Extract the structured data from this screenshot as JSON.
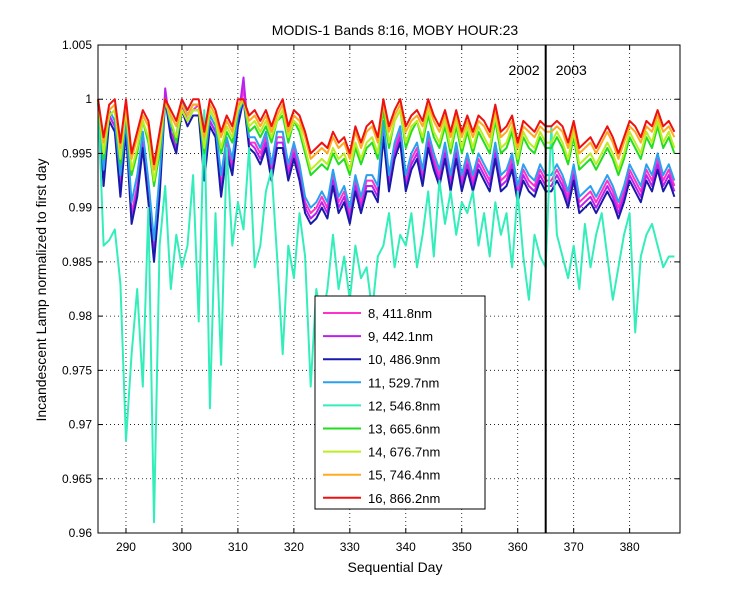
{
  "chart_data": {
    "type": "line",
    "title": "MODIS-1 Bands 8:16, MOBY HOUR:23",
    "xlabel": "Sequential Day",
    "ylabel": "Incandescent Lamp normalized to first day",
    "xlim": [
      285,
      389
    ],
    "ylim": [
      0.96,
      1.005
    ],
    "xticks": [
      290,
      300,
      310,
      320,
      330,
      340,
      350,
      360,
      370,
      380
    ],
    "yticks": [
      0.96,
      0.965,
      0.97,
      0.975,
      0.98,
      0.985,
      0.99,
      0.995,
      1,
      1.005
    ],
    "ytick_labels": [
      "0.96",
      "0.965",
      "0.97",
      "0.975",
      "0.98",
      "0.985",
      "0.99",
      "0.995",
      "1",
      "1.005"
    ],
    "grid": "dotted",
    "legend_position": "center",
    "annotations": [
      {
        "text": "2002",
        "x": 362
      },
      {
        "text": "2003",
        "x": 368
      }
    ],
    "vertical_line_x": 365,
    "x": [
      285,
      286,
      287,
      288,
      289,
      290,
      291,
      292,
      293,
      294,
      295,
      296,
      297,
      298,
      299,
      300,
      301,
      302,
      303,
      304,
      305,
      306,
      307,
      308,
      309,
      310,
      311,
      312,
      313,
      314,
      315,
      316,
      317,
      318,
      319,
      320,
      321,
      322,
      323,
      324,
      325,
      326,
      327,
      328,
      329,
      330,
      331,
      332,
      333,
      334,
      335,
      336,
      337,
      338,
      339,
      340,
      341,
      342,
      343,
      344,
      345,
      346,
      347,
      348,
      349,
      350,
      351,
      352,
      353,
      354,
      355,
      356,
      357,
      358,
      359,
      360,
      361,
      362,
      363,
      364,
      365,
      366,
      367,
      368,
      369,
      370,
      371,
      372,
      373,
      374,
      375,
      376,
      377,
      378,
      379,
      380,
      381,
      382,
      383,
      384,
      385,
      386,
      387,
      388
    ],
    "series": [
      {
        "name": "8, 411.8nm",
        "color": "#ff33cc",
        "values": [
          1.0,
          0.993,
          0.9985,
          0.9975,
          0.9925,
          0.9975,
          0.9895,
          0.992,
          0.9965,
          0.9915,
          0.986,
          0.992,
          1.0005,
          0.997,
          0.996,
          0.9995,
          0.998,
          0.999,
          0.9995,
          0.993,
          0.998,
          0.997,
          0.992,
          0.996,
          0.994,
          0.998,
          1.001,
          0.996,
          0.996,
          0.995,
          0.9965,
          0.9935,
          0.9965,
          0.9965,
          0.9935,
          0.9955,
          0.9935,
          0.9905,
          0.9895,
          0.99,
          0.991,
          0.99,
          0.993,
          0.9905,
          0.9915,
          0.9895,
          0.9925,
          0.9905,
          0.9925,
          0.9925,
          0.9915,
          0.9975,
          0.9925,
          0.9955,
          0.997,
          0.9925,
          0.9945,
          0.9955,
          0.993,
          0.9965,
          0.9945,
          0.993,
          0.9955,
          0.9925,
          0.9955,
          0.9925,
          0.9945,
          0.9925,
          0.9945,
          0.9935,
          0.9925,
          0.9955,
          0.9925,
          0.993,
          0.9945,
          0.9915,
          0.9935,
          0.9925,
          0.992,
          0.9935,
          0.9925,
          0.9925,
          0.9935,
          0.9925,
          0.991,
          0.9935,
          0.9905,
          0.991,
          0.9915,
          0.9905,
          0.9915,
          0.9925,
          0.9915,
          0.99,
          0.9915,
          0.9935,
          0.9925,
          0.9915,
          0.9935,
          0.9925,
          0.9945,
          0.9925,
          0.9935,
          0.992
        ]
      },
      {
        "name": "9, 442.1nm",
        "color": "#bb22ee",
        "values": [
          1.0,
          0.9925,
          0.9985,
          0.9975,
          0.9915,
          0.9975,
          0.989,
          0.9915,
          0.996,
          0.991,
          0.9855,
          0.9915,
          1.001,
          0.997,
          0.9955,
          0.9995,
          0.998,
          0.999,
          0.999,
          0.993,
          0.998,
          0.997,
          0.9915,
          0.9955,
          0.9935,
          0.998,
          1.002,
          0.996,
          0.9955,
          0.9945,
          0.996,
          0.993,
          0.996,
          0.996,
          0.993,
          0.995,
          0.993,
          0.99,
          0.989,
          0.9895,
          0.9905,
          0.9895,
          0.9925,
          0.99,
          0.991,
          0.989,
          0.992,
          0.99,
          0.992,
          0.992,
          0.991,
          0.997,
          0.992,
          0.995,
          0.9965,
          0.992,
          0.994,
          0.995,
          0.9925,
          0.996,
          0.994,
          0.9925,
          0.995,
          0.992,
          0.995,
          0.992,
          0.994,
          0.992,
          0.994,
          0.993,
          0.992,
          0.995,
          0.992,
          0.9925,
          0.994,
          0.991,
          0.993,
          0.992,
          0.9915,
          0.993,
          0.992,
          0.992,
          0.993,
          0.992,
          0.9905,
          0.993,
          0.99,
          0.9905,
          0.991,
          0.99,
          0.991,
          0.992,
          0.991,
          0.9895,
          0.991,
          0.993,
          0.992,
          0.991,
          0.993,
          0.992,
          0.994,
          0.992,
          0.993,
          0.9915
        ]
      },
      {
        "name": "10, 486.9nm",
        "color": "#1a1aaa",
        "values": [
          1.0,
          0.992,
          0.998,
          0.997,
          0.991,
          0.997,
          0.9885,
          0.991,
          0.9955,
          0.9905,
          0.985,
          0.991,
          1.0,
          0.9965,
          0.995,
          0.999,
          0.9975,
          0.9985,
          0.9985,
          0.9925,
          0.9975,
          0.9965,
          0.991,
          0.995,
          0.993,
          0.9975,
          1.0,
          0.9955,
          0.995,
          0.994,
          0.9955,
          0.9925,
          0.9955,
          0.9955,
          0.9925,
          0.9945,
          0.9925,
          0.9895,
          0.9885,
          0.989,
          0.99,
          0.989,
          0.992,
          0.9895,
          0.9905,
          0.9885,
          0.9915,
          0.9895,
          0.9915,
          0.9915,
          0.9905,
          0.9965,
          0.9915,
          0.9945,
          0.996,
          0.9915,
          0.9935,
          0.9945,
          0.992,
          0.9955,
          0.9935,
          0.992,
          0.9945,
          0.9915,
          0.9945,
          0.9915,
          0.9935,
          0.9915,
          0.9935,
          0.9925,
          0.9915,
          0.9945,
          0.9915,
          0.992,
          0.9935,
          0.9905,
          0.9925,
          0.9915,
          0.991,
          0.9925,
          0.9915,
          0.9915,
          0.9925,
          0.9915,
          0.99,
          0.9925,
          0.9895,
          0.99,
          0.9905,
          0.9895,
          0.9905,
          0.9915,
          0.9905,
          0.989,
          0.9905,
          0.9925,
          0.9915,
          0.9905,
          0.9925,
          0.9915,
          0.9935,
          0.9915,
          0.9925,
          0.991
        ]
      },
      {
        "name": "11, 529.7nm",
        "color": "#2aa0ee",
        "values": [
          1.0,
          0.9935,
          0.999,
          0.998,
          0.993,
          0.998,
          0.9905,
          0.993,
          0.997,
          0.9925,
          0.987,
          0.993,
          1.0,
          0.9975,
          0.9965,
          1.0,
          0.9985,
          0.9995,
          0.9995,
          0.994,
          0.9985,
          0.9975,
          0.993,
          0.9965,
          0.9945,
          0.9985,
          1.0,
          0.9965,
          0.9965,
          0.9955,
          0.997,
          0.994,
          0.997,
          0.997,
          0.994,
          0.996,
          0.994,
          0.991,
          0.99,
          0.9905,
          0.9915,
          0.9905,
          0.9935,
          0.991,
          0.992,
          0.99,
          0.993,
          0.991,
          0.993,
          0.993,
          0.992,
          0.998,
          0.993,
          0.996,
          0.9975,
          0.993,
          0.995,
          0.996,
          0.9935,
          0.997,
          0.995,
          0.9935,
          0.996,
          0.993,
          0.996,
          0.993,
          0.995,
          0.993,
          0.995,
          0.994,
          0.993,
          0.996,
          0.993,
          0.9935,
          0.995,
          0.992,
          0.994,
          0.993,
          0.9925,
          0.994,
          0.993,
          0.993,
          0.994,
          0.993,
          0.9915,
          0.994,
          0.991,
          0.9915,
          0.992,
          0.991,
          0.992,
          0.993,
          0.992,
          0.9905,
          0.992,
          0.994,
          0.993,
          0.992,
          0.994,
          0.993,
          0.995,
          0.993,
          0.994,
          0.9925
        ]
      },
      {
        "name": "12, 546.8nm",
        "color": "#33eebb",
        "values": [
          1.0,
          0.9865,
          0.987,
          0.988,
          0.983,
          0.9685,
          0.9765,
          0.9825,
          0.9735,
          0.99,
          0.961,
          0.9865,
          0.992,
          0.9825,
          0.9875,
          0.9845,
          0.9865,
          0.993,
          0.9795,
          0.999,
          0.9715,
          0.9895,
          0.9755,
          0.9955,
          0.9865,
          0.9905,
          0.988,
          0.9955,
          0.9845,
          0.9865,
          0.9915,
          0.9935,
          0.9855,
          0.9765,
          0.9865,
          0.9835,
          0.9895,
          0.9855,
          0.9735,
          0.9825,
          0.9795,
          0.9825,
          0.9875,
          0.9825,
          0.9855,
          0.9815,
          0.9865,
          0.9835,
          0.9845,
          0.9805,
          0.9855,
          0.9865,
          0.9895,
          0.9845,
          0.9875,
          0.9865,
          0.9895,
          0.9845,
          0.9875,
          0.9915,
          0.9855,
          0.9925,
          0.9885,
          0.9915,
          0.9875,
          0.9905,
          0.9895,
          0.9915,
          0.9865,
          0.9895,
          0.9855,
          0.9905,
          0.9875,
          0.9895,
          0.9845,
          0.9915,
          0.9855,
          0.9815,
          0.9875,
          0.9855,
          0.9845,
          0.9975,
          0.9875,
          0.9855,
          0.9835,
          0.9865,
          0.9825,
          0.9885,
          0.9845,
          0.9875,
          0.9895,
          0.9855,
          0.9815,
          0.9845,
          0.9875,
          0.9895,
          0.9785,
          0.9855,
          0.9875,
          0.9885,
          0.9865,
          0.9845,
          0.9855,
          0.9855
        ]
      },
      {
        "name": "13, 665.6nm",
        "color": "#22dd22",
        "values": [
          1.0,
          0.9945,
          0.9985,
          0.999,
          0.994,
          0.999,
          0.993,
          0.995,
          0.998,
          0.996,
          0.992,
          0.995,
          1.0,
          0.998,
          0.996,
          0.999,
          0.998,
          0.999,
          0.999,
          0.995,
          0.999,
          0.998,
          0.995,
          0.997,
          0.996,
          0.999,
          1.0,
          0.997,
          0.9975,
          0.9965,
          0.9975,
          0.996,
          0.998,
          0.9985,
          0.996,
          0.998,
          0.997,
          0.995,
          0.993,
          0.9935,
          0.994,
          0.9935,
          0.995,
          0.994,
          0.9945,
          0.993,
          0.9955,
          0.994,
          0.9955,
          0.996,
          0.9945,
          0.999,
          0.9955,
          0.998,
          0.999,
          0.9955,
          0.997,
          0.998,
          0.996,
          0.9985,
          0.9965,
          0.9955,
          0.9975,
          0.995,
          0.9975,
          0.995,
          0.997,
          0.995,
          0.997,
          0.996,
          0.995,
          0.998,
          0.995,
          0.9955,
          0.997,
          0.994,
          0.9965,
          0.9955,
          0.995,
          0.9965,
          0.9955,
          0.9955,
          0.9965,
          0.9955,
          0.994,
          0.9965,
          0.9935,
          0.994,
          0.9945,
          0.9935,
          0.9945,
          0.9955,
          0.9945,
          0.993,
          0.9945,
          0.9965,
          0.9955,
          0.9945,
          0.9965,
          0.9955,
          0.9975,
          0.9955,
          0.9965,
          0.995
        ]
      },
      {
        "name": "14, 676.7nm",
        "color": "#bbee22",
        "values": [
          1.0,
          0.995,
          0.9985,
          0.999,
          0.9945,
          0.999,
          0.9935,
          0.9955,
          0.998,
          0.9965,
          0.9925,
          0.9955,
          1.0,
          0.998,
          0.9965,
          0.999,
          0.998,
          0.999,
          0.999,
          0.9955,
          0.999,
          0.998,
          0.9955,
          0.9975,
          0.9965,
          0.999,
          1.0,
          0.9975,
          0.998,
          0.997,
          0.998,
          0.9965,
          0.998,
          0.999,
          0.9965,
          0.998,
          0.9975,
          0.9955,
          0.9935,
          0.994,
          0.9945,
          0.994,
          0.9955,
          0.9945,
          0.995,
          0.9935,
          0.996,
          0.9945,
          0.996,
          0.9965,
          0.995,
          1.0,
          0.996,
          0.998,
          0.999,
          0.996,
          0.9975,
          0.998,
          0.9965,
          0.999,
          0.997,
          0.996,
          0.998,
          0.9955,
          0.998,
          0.9955,
          0.9975,
          0.9955,
          0.9975,
          0.9965,
          0.9955,
          0.9985,
          0.9955,
          0.996,
          0.9975,
          0.9945,
          0.997,
          0.996,
          0.9955,
          0.997,
          0.996,
          0.996,
          0.997,
          0.996,
          0.9945,
          0.997,
          0.994,
          0.9945,
          0.995,
          0.994,
          0.995,
          0.996,
          0.995,
          0.9935,
          0.995,
          0.997,
          0.996,
          0.995,
          0.997,
          0.996,
          0.998,
          0.996,
          0.997,
          0.9955
        ]
      },
      {
        "name": "15, 746.4nm",
        "color": "#ffaa22",
        "values": [
          1.0,
          0.996,
          0.999,
          0.9995,
          0.9955,
          0.9995,
          0.9945,
          0.9965,
          0.9985,
          0.9975,
          0.9935,
          0.9965,
          1.0,
          0.9985,
          0.9975,
          0.9995,
          0.9985,
          0.9995,
          0.9995,
          0.9965,
          0.9995,
          0.9985,
          0.9965,
          0.998,
          0.997,
          0.9995,
          1.0,
          0.998,
          0.9985,
          0.9975,
          0.9985,
          0.997,
          0.9985,
          0.9995,
          0.997,
          0.9985,
          0.998,
          0.9965,
          0.9945,
          0.995,
          0.9955,
          0.995,
          0.9965,
          0.9955,
          0.996,
          0.9945,
          0.997,
          0.9955,
          0.997,
          0.9975,
          0.996,
          0.9995,
          0.997,
          0.9985,
          0.9995,
          0.997,
          0.998,
          0.9985,
          0.9975,
          0.9995,
          0.998,
          0.997,
          0.9985,
          0.9965,
          0.9985,
          0.9965,
          0.998,
          0.9965,
          0.998,
          0.9975,
          0.9965,
          0.999,
          0.9965,
          0.997,
          0.998,
          0.9955,
          0.9975,
          0.997,
          0.9965,
          0.9975,
          0.997,
          0.997,
          0.9975,
          0.997,
          0.9955,
          0.9975,
          0.995,
          0.9955,
          0.996,
          0.995,
          0.996,
          0.997,
          0.996,
          0.9945,
          0.996,
          0.9975,
          0.997,
          0.996,
          0.9975,
          0.997,
          0.9985,
          0.997,
          0.9975,
          0.9965
        ]
      },
      {
        "name": "16, 866.2nm",
        "color": "#ee1111",
        "values": [
          1.0,
          0.9965,
          0.9995,
          1.0,
          0.996,
          1.0,
          0.995,
          0.997,
          0.999,
          0.998,
          0.994,
          0.997,
          1.0,
          0.999,
          0.998,
          1.0,
          0.999,
          1.0,
          1.0,
          0.997,
          1.0,
          0.999,
          0.997,
          0.9985,
          0.9975,
          1.0,
          1.0,
          0.9985,
          0.999,
          0.998,
          0.999,
          0.9975,
          0.999,
          1.0,
          0.9975,
          0.999,
          0.9985,
          0.997,
          0.995,
          0.9955,
          0.996,
          0.9955,
          0.997,
          0.996,
          0.9965,
          0.995,
          0.9975,
          0.996,
          0.9975,
          0.998,
          0.9965,
          1.0,
          0.9975,
          0.999,
          1.0,
          0.9975,
          0.9985,
          0.999,
          0.998,
          1.0,
          0.9985,
          0.9975,
          0.999,
          0.997,
          0.999,
          0.997,
          0.9985,
          0.997,
          0.9985,
          0.998,
          0.997,
          0.9995,
          0.997,
          0.9975,
          0.9985,
          0.996,
          0.998,
          0.9975,
          0.997,
          0.998,
          0.9975,
          0.9975,
          0.998,
          0.9975,
          0.996,
          0.998,
          0.9955,
          0.996,
          0.9965,
          0.9955,
          0.9965,
          0.9975,
          0.9965,
          0.995,
          0.9965,
          0.998,
          0.9975,
          0.9965,
          0.998,
          0.9975,
          0.999,
          0.9975,
          0.998,
          0.997
        ]
      }
    ]
  }
}
